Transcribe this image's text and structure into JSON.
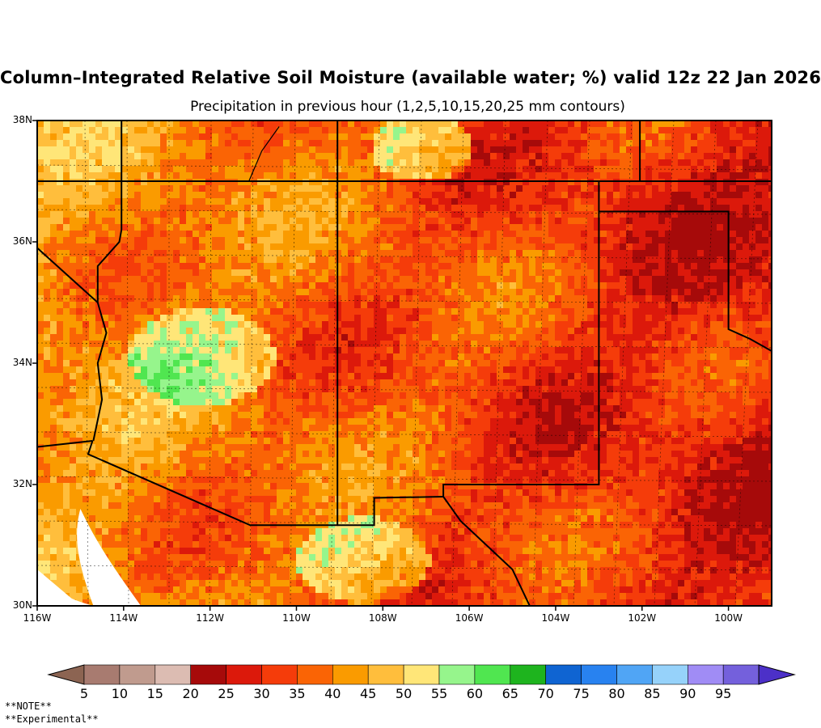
{
  "title": "Column–Integrated Relative Soil Moisture (available water; %) valid 12z 22 Jan 2026",
  "subtitle": "Precipitation in previous hour (1,2,5,10,15,20,25 mm contours)",
  "latitude_labels": [
    "38N",
    "36N",
    "34N",
    "32N",
    "30N"
  ],
  "longitude_labels": [
    "116W",
    "114W",
    "112W",
    "110W",
    "108W",
    "106W",
    "104W",
    "102W",
    "100W"
  ],
  "colorbar": {
    "labels": [
      "5",
      "10",
      "15",
      "20",
      "25",
      "30",
      "35",
      "40",
      "45",
      "50",
      "55",
      "60",
      "65",
      "70",
      "75",
      "80",
      "85",
      "90",
      "95"
    ],
    "colors": [
      "#a87b70",
      "#c09b8e",
      "#dcbcb2",
      "#a60a0a",
      "#dc190b",
      "#f53c0a",
      "#fa6405",
      "#fa9b00",
      "#ffbe3c",
      "#ffe678",
      "#96f58c",
      "#50e650",
      "#1eb41e",
      "#0f64d2",
      "#2882f0",
      "#50a5f5",
      "#96d2fa",
      "#a08cf5",
      "#7460dc"
    ],
    "under_color": "#8c6452",
    "over_color": "#4c30c8"
  },
  "notes": [
    "**NOTE**",
    "**Experimental**"
  ],
  "map_region": "Southwestern United States and northern Mexico: Arizona, New Mexico, western Texas, Oklahoma panhandle"
}
